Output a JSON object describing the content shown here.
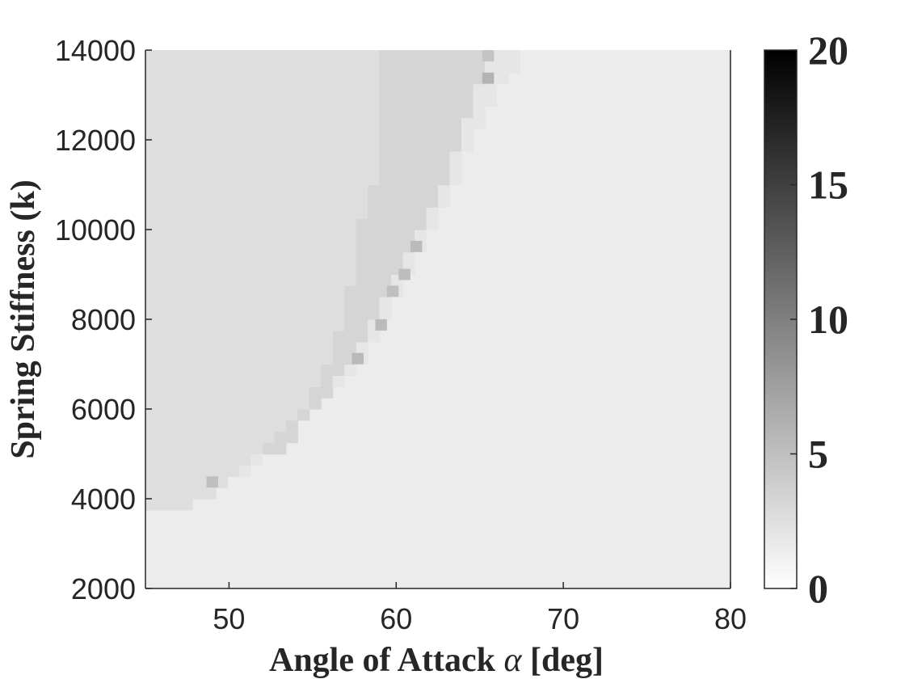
{
  "chart_data": {
    "type": "heatmap",
    "title": "",
    "xlabel": "Angle of Attack",
    "xlabel_symbol": "α",
    "xlabel_unit": "[deg]",
    "ylabel": "Spring Stiffness (k)",
    "xlim": [
      45,
      80
    ],
    "ylim": [
      2000,
      14000
    ],
    "x_ticks": [
      "50",
      "60",
      "70",
      "80"
    ],
    "y_ticks": [
      "2000",
      "4000",
      "6000",
      "8000",
      "10000",
      "12000",
      "14000"
    ],
    "colormap": "gray (white = 0, black = 20)",
    "colorbar": {
      "range": [
        0,
        20
      ],
      "ticks": [
        "0",
        "5",
        "10",
        "15",
        "20"
      ]
    },
    "grid": false,
    "cell_size": {
      "x_deg": 0.7,
      "y_k": 250
    },
    "background_value": 1.5,
    "regions": [
      {
        "description": "plateau region, value approx 2.6",
        "value": 2.6,
        "boundary": [
          [
            3750,
            47.1
          ],
          [
            4000,
            48.5
          ],
          [
            4500,
            50.6
          ],
          [
            5250,
            52.1
          ],
          [
            5750,
            53.5
          ],
          [
            6250,
            55.0
          ],
          [
            7500,
            56.4
          ],
          [
            8500,
            57.1
          ],
          [
            10000,
            57.8
          ],
          [
            11500,
            59.2
          ],
          [
            14000,
            59.2
          ]
        ]
      },
      {
        "description": "transition band, value approx 3.3",
        "value": 3.3,
        "boundary": [
          [
            5000,
            52.8
          ],
          [
            5500,
            54.2
          ],
          [
            6250,
            55.7
          ],
          [
            7000,
            57.1
          ],
          [
            8000,
            58.5
          ],
          [
            9000,
            60.0
          ],
          [
            10000,
            61.4
          ],
          [
            11000,
            62.8
          ],
          [
            12500,
            64.2
          ],
          [
            14000,
            65.7
          ]
        ]
      },
      {
        "description": "faint outer fringe, value approx 2.0",
        "value": 2.0,
        "boundary": [
          [
            4500,
            50.6
          ],
          [
            5000,
            52.8
          ],
          [
            5500,
            54.2
          ],
          [
            6250,
            55.7
          ],
          [
            7000,
            57.8
          ],
          [
            8000,
            59.2
          ],
          [
            9000,
            60.7
          ],
          [
            10000,
            62.1
          ],
          [
            11000,
            63.5
          ],
          [
            12250,
            65.0
          ],
          [
            13250,
            66.4
          ],
          [
            14000,
            67.8
          ]
        ]
      }
    ],
    "hot_cells": [
      {
        "x": 49.0,
        "y": 4375,
        "value": 5.0
      },
      {
        "x": 57.7,
        "y": 7125,
        "value": 5.5
      },
      {
        "x": 59.1,
        "y": 7875,
        "value": 5.3
      },
      {
        "x": 59.8,
        "y": 8625,
        "value": 5.0
      },
      {
        "x": 60.5,
        "y": 9000,
        "value": 5.2
      },
      {
        "x": 61.2,
        "y": 9625,
        "value": 5.4
      },
      {
        "x": 65.5,
        "y": 13375,
        "value": 6.0
      },
      {
        "x": 65.5,
        "y": 13875,
        "value": 4.6
      }
    ]
  }
}
